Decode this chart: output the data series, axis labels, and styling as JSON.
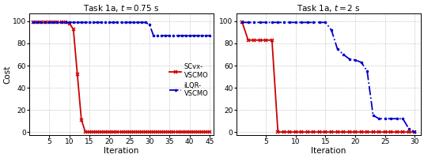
{
  "plot1": {
    "title": "Task 1a, $t = 0.75$ s",
    "scvx_x": [
      1,
      2,
      3,
      4,
      5,
      6,
      7,
      8,
      9,
      10,
      11,
      12,
      13,
      14,
      15,
      16,
      17,
      18,
      19,
      20,
      21,
      22,
      23,
      24,
      25,
      26,
      27,
      28,
      29,
      30,
      31,
      32,
      33,
      34,
      35,
      36,
      37,
      38,
      39,
      40,
      41,
      42,
      43,
      44,
      45
    ],
    "scvx_y": [
      99,
      99,
      99,
      99,
      99,
      99,
      99,
      99,
      99,
      98,
      93,
      52,
      11,
      0,
      0,
      0,
      0,
      0,
      0,
      0,
      0,
      0,
      0,
      0,
      0,
      0,
      0,
      0,
      0,
      0,
      0,
      0,
      0,
      0,
      0,
      0,
      0,
      0,
      0,
      0,
      0,
      0,
      0,
      0,
      0
    ],
    "ilqr_x": [
      1,
      2,
      3,
      4,
      5,
      6,
      7,
      8,
      9,
      10,
      11,
      12,
      13,
      14,
      15,
      16,
      17,
      18,
      19,
      20,
      21,
      22,
      23,
      24,
      25,
      26,
      27,
      28,
      29,
      30,
      31,
      32,
      33,
      34,
      35,
      36,
      37,
      38,
      39,
      40,
      41,
      42,
      43,
      44,
      45
    ],
    "ilqr_y": [
      99,
      99,
      99,
      99,
      99,
      99,
      99,
      99,
      99,
      99,
      99,
      99,
      99,
      99,
      99,
      99,
      99,
      99,
      99,
      99,
      99,
      99,
      99,
      99,
      99,
      99,
      99,
      99,
      99,
      97,
      87,
      87,
      87,
      87,
      87,
      87,
      87,
      87,
      87,
      87,
      87,
      87,
      87,
      87,
      87
    ],
    "xlim": [
      0,
      46
    ],
    "xticks": [
      5,
      10,
      15,
      20,
      25,
      30,
      35,
      40,
      45
    ],
    "ylim": [
      -3,
      107
    ],
    "yticks": [
      0,
      20,
      40,
      60,
      80,
      100
    ]
  },
  "plot2": {
    "title": "Task 1a, $t = 2$ s",
    "scvx_x": [
      1,
      2,
      3,
      4,
      5,
      6,
      7,
      8,
      9,
      10,
      11,
      12,
      13,
      14,
      15,
      16,
      17,
      18,
      19,
      20,
      21,
      22,
      23,
      24,
      25,
      26,
      27,
      28,
      29,
      30
    ],
    "scvx_y": [
      99,
      83,
      83,
      83,
      83,
      83,
      0,
      0,
      0,
      0,
      0,
      0,
      0,
      0,
      0,
      0,
      0,
      0,
      0,
      0,
      0,
      0,
      0,
      0,
      0,
      0,
      0,
      0,
      0,
      0
    ],
    "ilqr_x": [
      1,
      2,
      3,
      4,
      5,
      6,
      7,
      8,
      9,
      10,
      11,
      12,
      13,
      14,
      15,
      16,
      17,
      18,
      19,
      20,
      21,
      22,
      23,
      24,
      25,
      26,
      27,
      28,
      29,
      30
    ],
    "ilqr_y": [
      99,
      99,
      99,
      99,
      99,
      99,
      99,
      99,
      99,
      99,
      99,
      99,
      99,
      99,
      99,
      92,
      75,
      70,
      66,
      65,
      63,
      55,
      15,
      12,
      12,
      12,
      12,
      12,
      3,
      0
    ],
    "xlim": [
      0,
      31
    ],
    "xticks": [
      5,
      10,
      15,
      20,
      25,
      30
    ],
    "ylim": [
      -3,
      107
    ],
    "yticks": [
      0,
      20,
      40,
      60,
      80,
      100
    ]
  },
  "scvx_color": "#cc0000",
  "ilqr_color": "#0000cc",
  "ylabel": "Cost",
  "xlabel": "Iteration",
  "legend_labels": [
    "SCvx-\nVSCMO",
    "iLQR-\nVSCMO"
  ],
  "bg_color": "#ffffff",
  "grid_color": "#b0b0b0"
}
